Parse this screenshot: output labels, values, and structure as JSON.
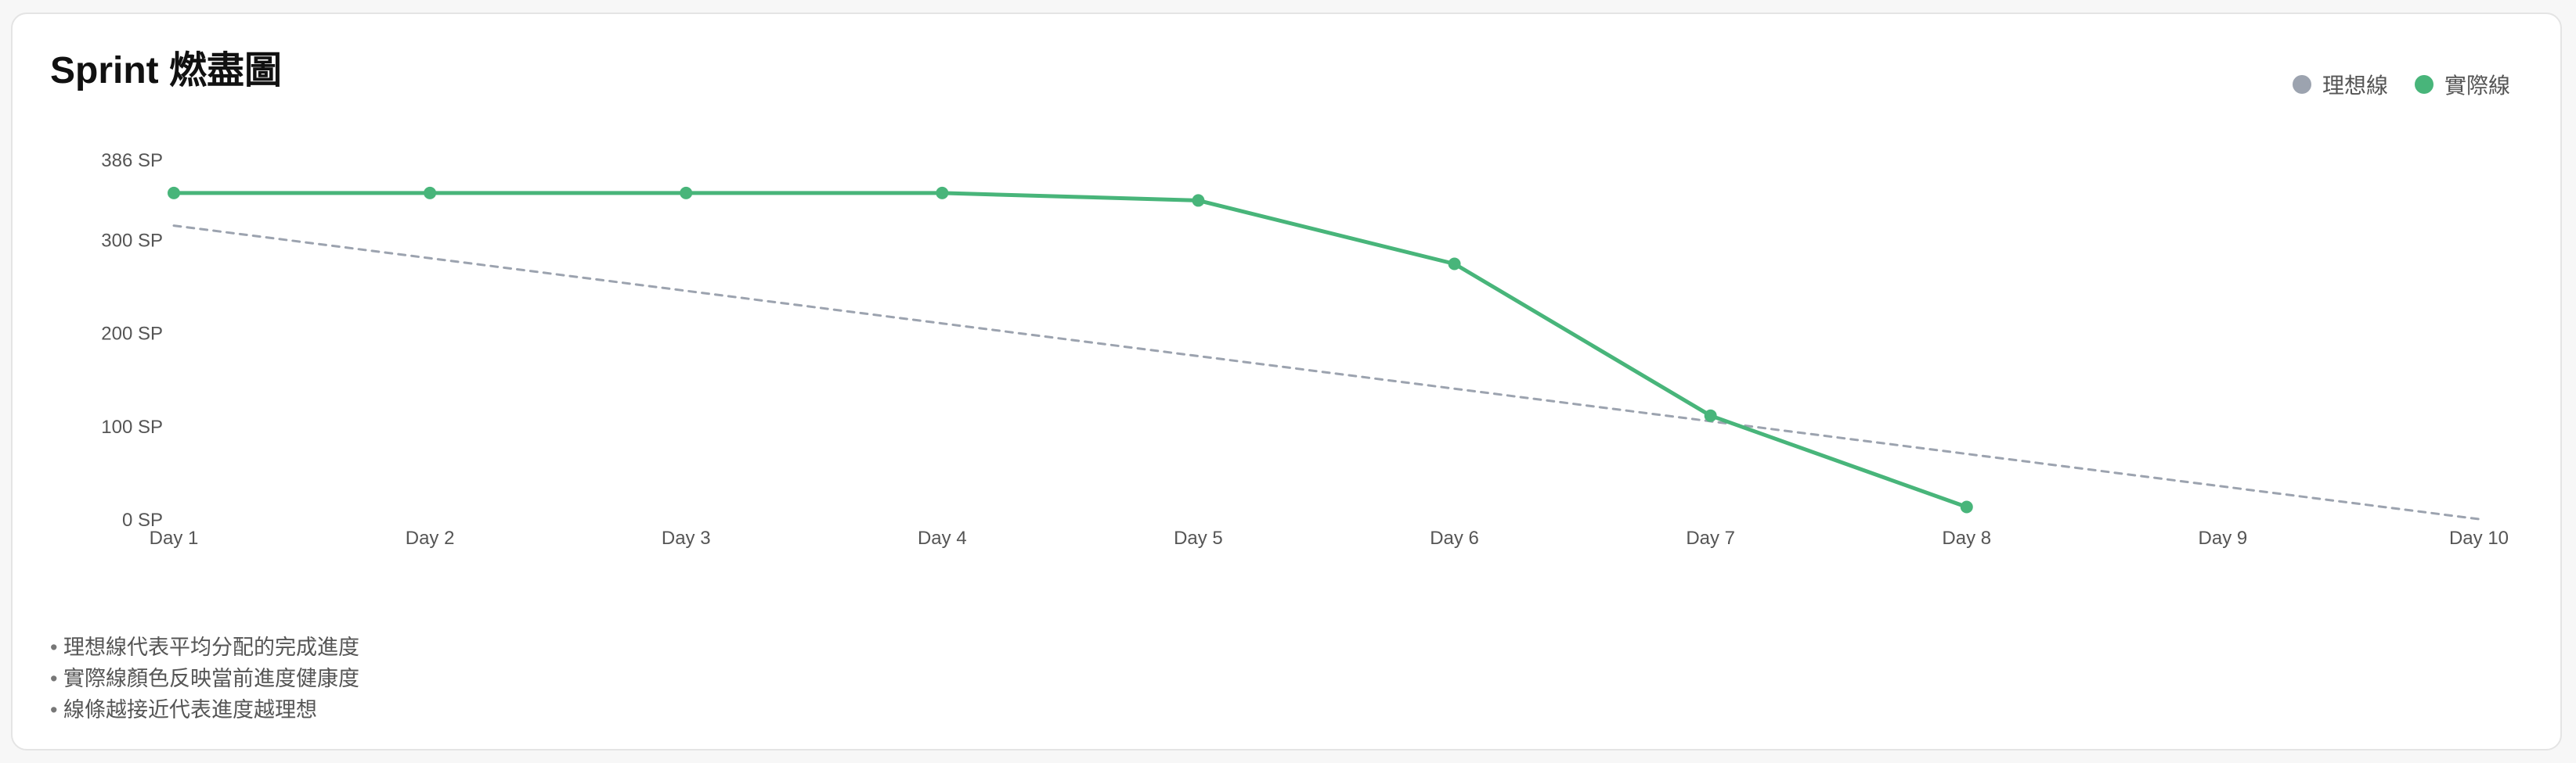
{
  "card": {
    "title": "Sprint 燃盡圖"
  },
  "legend": [
    {
      "label": "理想線",
      "color": "#9ca3af"
    },
    {
      "label": "實際線",
      "color": "#48b57a"
    }
  ],
  "notes": [
    "理想線代表平均分配的完成進度",
    "實際線顏色反映當前進度健康度",
    "線條越接近代表進度越理想"
  ],
  "chart_data": {
    "type": "line",
    "title": "Sprint 燃盡圖",
    "categories": [
      "Day 1",
      "Day 2",
      "Day 3",
      "Day 4",
      "Day 5",
      "Day 6",
      "Day 7",
      "Day 8",
      "Day 9",
      "Day 10"
    ],
    "y_ticks": [
      {
        "value": 0,
        "label": "0 SP"
      },
      {
        "value": 100,
        "label": "100 SP"
      },
      {
        "value": 200,
        "label": "200 SP"
      },
      {
        "value": 300,
        "label": "300 SP"
      },
      {
        "value": 386,
        "label": "386 SP"
      }
    ],
    "ylim": [
      0,
      386
    ],
    "grid": false,
    "legend_position": "top-right",
    "series": [
      {
        "name": "理想線",
        "style": "dashed",
        "color": "#9ca3af",
        "values": [
          315,
          280,
          245,
          210,
          175,
          140,
          105,
          70,
          35,
          0
        ]
      },
      {
        "name": "實際線",
        "style": "solid",
        "color": "#48b57a",
        "values": [
          350,
          350,
          350,
          350,
          342,
          274,
          111,
          13,
          null,
          null
        ]
      }
    ]
  }
}
